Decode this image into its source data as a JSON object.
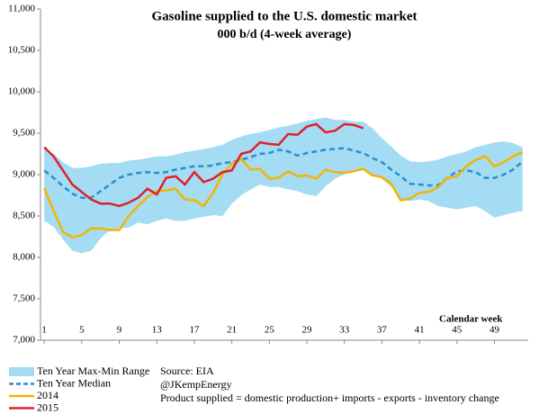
{
  "chart_data": {
    "type": "line",
    "title": "Gasoline supplied to the U.S. domestic market",
    "subtitle": "000 b/d (4-week average)",
    "x_label": "Calendar week",
    "annotations": [
      "Source: EIA",
      "@JKempEnergy",
      "Product supplied = domestic production+ imports - exports - inventory change"
    ],
    "x": [
      1,
      2,
      3,
      4,
      5,
      6,
      7,
      8,
      9,
      10,
      11,
      12,
      13,
      14,
      15,
      16,
      17,
      18,
      19,
      20,
      21,
      22,
      23,
      24,
      25,
      26,
      27,
      28,
      29,
      30,
      31,
      32,
      33,
      34,
      35,
      36,
      37,
      38,
      39,
      40,
      41,
      42,
      43,
      44,
      45,
      46,
      47,
      48,
      49,
      50,
      51,
      52
    ],
    "xlim": [
      0.6,
      52.6
    ],
    "xticks": [
      1,
      5,
      9,
      13,
      17,
      21,
      25,
      29,
      33,
      37,
      41,
      45,
      49
    ],
    "ylim": [
      7000,
      11000
    ],
    "yticks": [
      {
        "value": 7000,
        "label": "7,000"
      },
      {
        "value": 7500,
        "label": "7,500"
      },
      {
        "value": 8000,
        "label": "8,000"
      },
      {
        "value": 8500,
        "label": "8,500"
      },
      {
        "value": 9000,
        "label": "9,000"
      },
      {
        "value": 9500,
        "label": "9,500"
      },
      {
        "value": 10000,
        "label": "10,000"
      },
      {
        "value": 10500,
        "label": "10,500"
      },
      {
        "value": 11000,
        "label": "11,000"
      }
    ],
    "series": [
      {
        "name": "Ten Year Max-Min Range",
        "color": "#a3dcf3",
        "high": [
          9310,
          9250,
          9150,
          9080,
          9080,
          9100,
          9130,
          9140,
          9140,
          9170,
          9180,
          9200,
          9220,
          9220,
          9240,
          9270,
          9290,
          9310,
          9330,
          9360,
          9420,
          9460,
          9490,
          9510,
          9540,
          9570,
          9590,
          9620,
          9650,
          9670,
          9690,
          9660,
          9660,
          9640,
          9640,
          9560,
          9440,
          9340,
          9230,
          9160,
          9150,
          9160,
          9180,
          9220,
          9250,
          9280,
          9330,
          9360,
          9390,
          9400,
          9380,
          9330
        ],
        "low": [
          8440,
          8370,
          8220,
          8080,
          8050,
          8080,
          8230,
          8330,
          8350,
          8360,
          8420,
          8400,
          8440,
          8470,
          8440,
          8440,
          8470,
          8490,
          8510,
          8500,
          8650,
          8750,
          8820,
          8880,
          8850,
          8850,
          8820,
          8800,
          8760,
          8740,
          8860,
          8950,
          9000,
          9050,
          9050,
          9000,
          8950,
          8850,
          8700,
          8680,
          8700,
          8680,
          8620,
          8600,
          8580,
          8600,
          8620,
          8560,
          8480,
          8510,
          8540,
          8560
        ]
      },
      {
        "name": "Ten Year Median",
        "color": "#2a8fd0",
        "dashed": true,
        "values": [
          9050,
          8960,
          8860,
          8770,
          8720,
          8720,
          8800,
          8880,
          8960,
          9000,
          9020,
          9030,
          9020,
          9030,
          9060,
          9080,
          9100,
          9100,
          9110,
          9140,
          9150,
          9180,
          9210,
          9250,
          9260,
          9300,
          9280,
          9230,
          9260,
          9280,
          9300,
          9310,
          9320,
          9290,
          9260,
          9200,
          9150,
          9060,
          8980,
          8890,
          8880,
          8870,
          8870,
          8960,
          9040,
          9050,
          9030,
          8960,
          8960,
          9000,
          9060,
          9160
        ]
      },
      {
        "name": "2014",
        "color": "#f4b400",
        "values": [
          8840,
          8560,
          8310,
          8240,
          8270,
          8350,
          8350,
          8330,
          8330,
          8500,
          8620,
          8730,
          8800,
          8810,
          8830,
          8700,
          8690,
          8620,
          8780,
          9000,
          9130,
          9190,
          9060,
          9070,
          8950,
          8960,
          9040,
          8980,
          8990,
          8950,
          9060,
          9030,
          9020,
          9040,
          9070,
          8990,
          8970,
          8890,
          8690,
          8710,
          8780,
          8790,
          8850,
          8960,
          8980,
          9100,
          9180,
          9220,
          9100,
          9150,
          9220,
          9270
        ]
      },
      {
        "name": "2015",
        "color": "#e0202e",
        "values": [
          9330,
          9220,
          9050,
          8880,
          8790,
          8700,
          8650,
          8650,
          8620,
          8660,
          8720,
          8830,
          8760,
          8960,
          8980,
          8880,
          9030,
          8910,
          8950,
          9030,
          9050,
          9250,
          9280,
          9390,
          9370,
          9360,
          9490,
          9480,
          9580,
          9610,
          9510,
          9530,
          9610,
          9600,
          9560,
          null,
          null,
          null,
          null,
          null,
          null,
          null,
          null,
          null,
          null,
          null,
          null,
          null,
          null,
          null,
          null,
          null
        ]
      }
    ]
  }
}
